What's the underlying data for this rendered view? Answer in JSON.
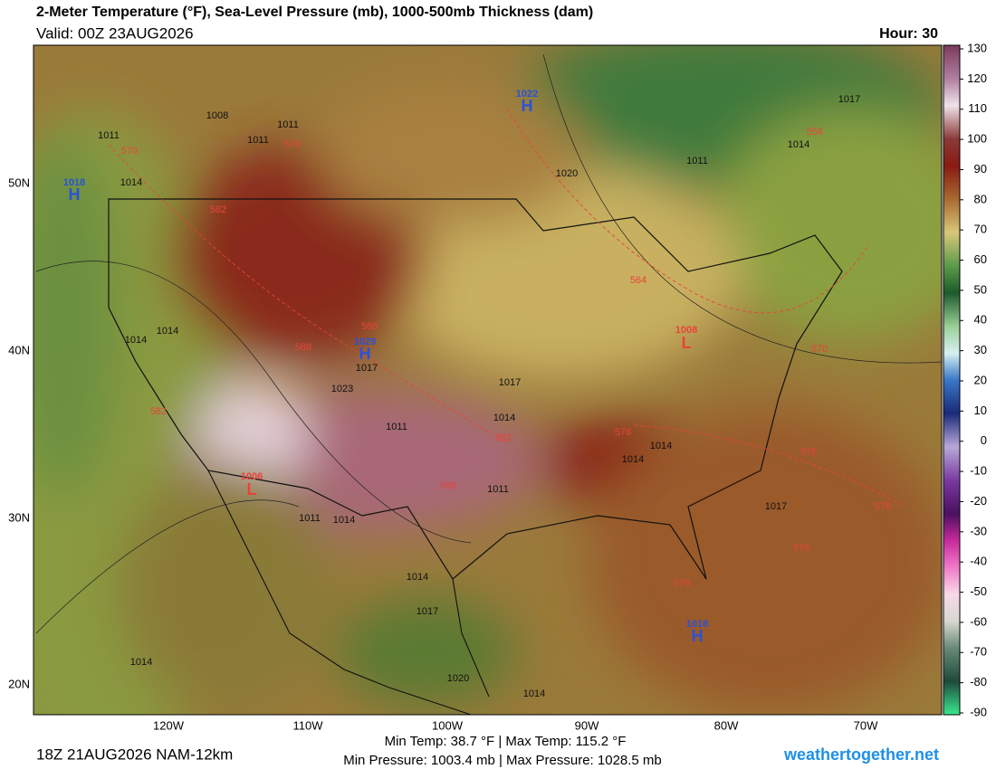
{
  "header": {
    "title": "2-Meter Temperature (°F), Sea-Level Pressure (mb), 1000-500mb Thickness (dam)",
    "valid": "Valid: 00Z 23AUG2026",
    "hour": "Hour: 30"
  },
  "colorbar": {
    "ticks": [
      130,
      120,
      110,
      100,
      90,
      80,
      70,
      60,
      50,
      40,
      30,
      20,
      10,
      0,
      -10,
      -20,
      -30,
      -40,
      -50,
      -60,
      -70,
      -80,
      -90
    ]
  },
  "latitudes": [
    "50N",
    "40N",
    "30N",
    "20N"
  ],
  "longitudes": [
    "120W",
    "110W",
    "100W",
    "90W",
    "80W",
    "70W"
  ],
  "isobars": [
    1008,
    1011,
    1011,
    1011,
    1014,
    1011,
    1014,
    1017,
    1020,
    1014,
    1014,
    1017,
    1023,
    1017,
    1014,
    1011,
    1011,
    1014,
    1014,
    1017,
    1014,
    1011,
    1014,
    1014,
    1017,
    1014,
    1020
  ],
  "thickness": [
    570,
    576,
    582,
    588,
    588,
    582,
    582,
    588,
    576,
    564,
    558,
    570,
    576,
    576,
    576,
    576
  ],
  "highs": [
    {
      "pressure": 1022,
      "symbol": "H"
    },
    {
      "pressure": 1018,
      "symbol": "H"
    },
    {
      "pressure": 1029,
      "symbol": "H"
    },
    {
      "pressure": 1018,
      "symbol": "H"
    }
  ],
  "lows": [
    {
      "pressure": 1008,
      "symbol": "L"
    },
    {
      "pressure": 1006,
      "symbol": "L"
    }
  ],
  "footer": {
    "run": "18Z 21AUG2026 NAM-12km",
    "temps": "Min Temp:  38.7 °F | Max Temp: 115.2 °F",
    "pressures": "Min Pressure: 1003.4 mb | Max Pressure: 1028.5 mb",
    "site": "weathertogether.net"
  }
}
